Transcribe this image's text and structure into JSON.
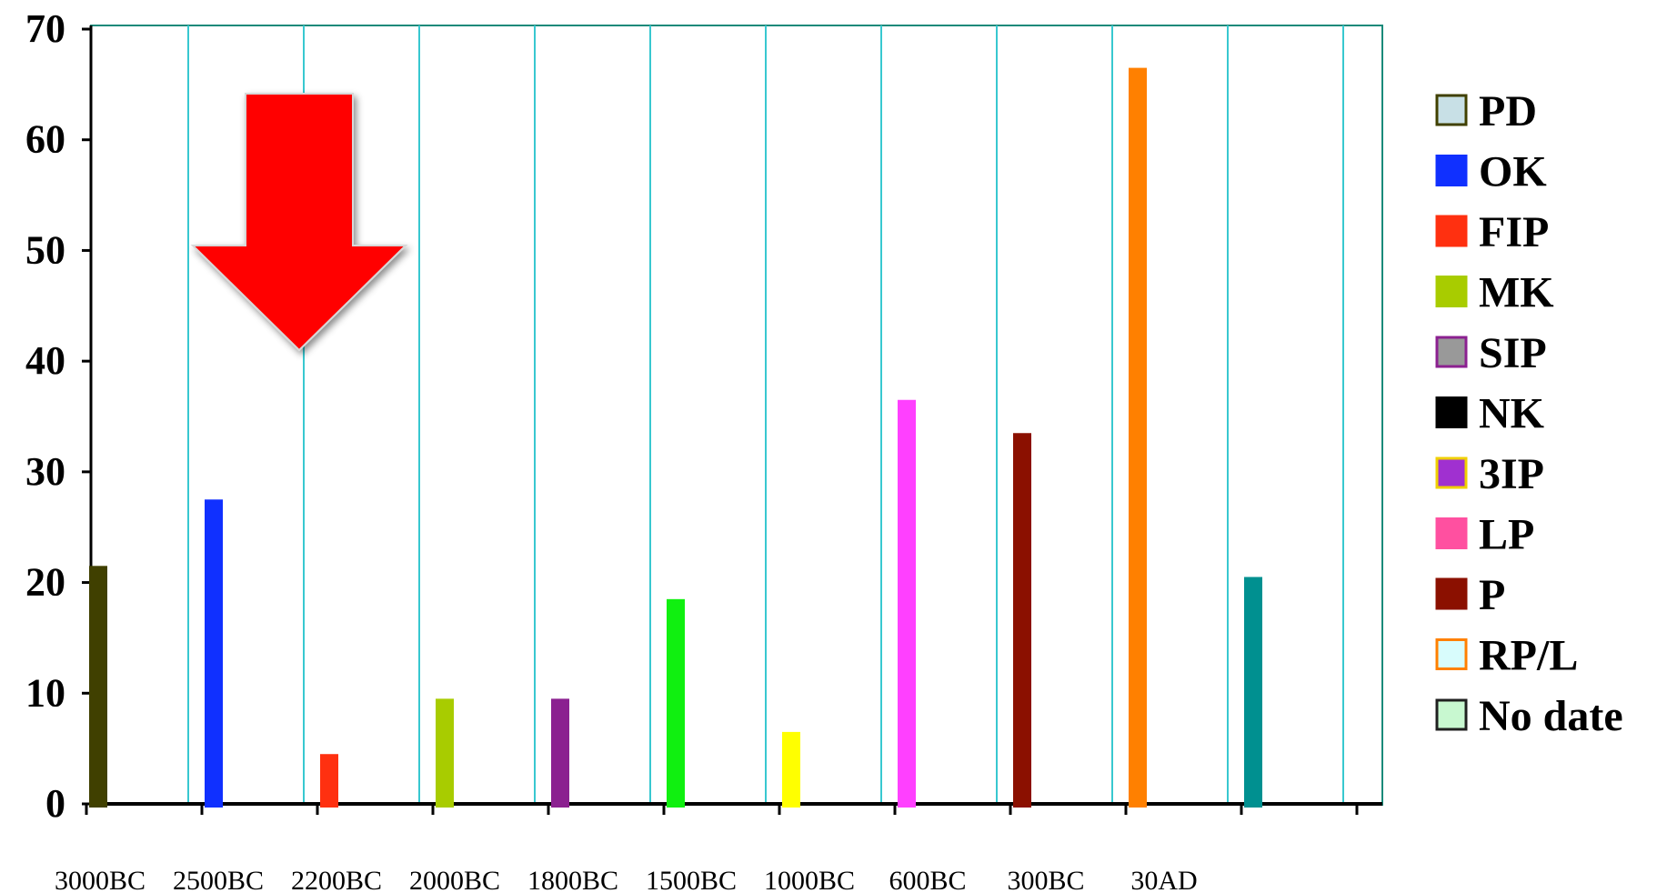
{
  "chart_data": {
    "type": "bar",
    "title": "",
    "xlabel": "",
    "ylabel": "",
    "ylim": [
      0,
      70
    ],
    "yticks": [
      0,
      10,
      20,
      30,
      40,
      50,
      60,
      70
    ],
    "xtick_labels": [
      "3000BC",
      "2500BC",
      "2200BC",
      "2000BC",
      "1800BC",
      "1500BC",
      "1000BC",
      "600BC",
      "300BC",
      "30AD"
    ],
    "grid": "vertical",
    "legend_position": "right",
    "annotation": "red-down-arrow",
    "series": [
      {
        "name": "PD",
        "value": 21.5,
        "color": "#404000",
        "legend_color": "#c8e0e6",
        "legend_border": "#404000"
      },
      {
        "name": "OK",
        "value": 27.5,
        "color": "#1030ff",
        "legend_color": "#1030ff",
        "legend_border": "#1030ff"
      },
      {
        "name": "FIP",
        "value": 4.5,
        "color": "#ff3010",
        "legend_color": "#ff3010",
        "legend_border": "#ff3010"
      },
      {
        "name": "MK",
        "value": 9.5,
        "color": "#a8cc00",
        "legend_color": "#a8cc00",
        "legend_border": "#a8cc00"
      },
      {
        "name": "SIP",
        "value": 9.5,
        "color": "#8b2090",
        "legend_color": "#999999",
        "legend_border": "#8b2090"
      },
      {
        "name": "NK",
        "value": 18.5,
        "color": "#10f010",
        "legend_color": "#000000",
        "legend_border": "#000000"
      },
      {
        "name": "3IP",
        "value": 6.5,
        "color": "#ffff00",
        "legend_color": "#a030d0",
        "legend_border": "#f0d000"
      },
      {
        "name": "LP",
        "value": 36.5,
        "color": "#ff40ff",
        "legend_color": "#ff50a0",
        "legend_border": "#ff50a0"
      },
      {
        "name": "P",
        "value": 33.5,
        "color": "#8b1000",
        "legend_color": "#8b1000",
        "legend_border": "#8b1000"
      },
      {
        "name": "RP/L",
        "value": 66.5,
        "color": "#ff8000",
        "legend_color": "#d8fcfc",
        "legend_border": "#ff8000"
      },
      {
        "name": "No date",
        "value": 20.5,
        "color": "#009090",
        "legend_color": "#c8f8d0",
        "legend_border": "#202020"
      }
    ]
  }
}
